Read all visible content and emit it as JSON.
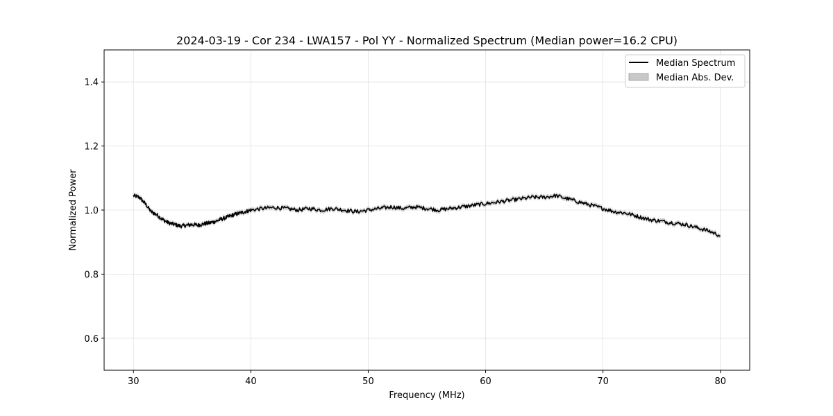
{
  "chart_data": {
    "type": "line",
    "title": "2024-03-19 - Cor 234 - LWA157 - Pol YY - Normalized Spectrum (Median power=16.2 CPU)",
    "xlabel": "Frequency (MHz)",
    "ylabel": "Normalized Power",
    "xlim": [
      27.5,
      82.5
    ],
    "ylim": [
      0.5,
      1.5
    ],
    "xticks": [
      30,
      40,
      50,
      60,
      70,
      80
    ],
    "yticks": [
      0.6,
      0.8,
      1.0,
      1.2,
      1.4
    ],
    "xtick_labels": [
      "30",
      "40",
      "50",
      "60",
      "70",
      "80"
    ],
    "ytick_labels": [
      "0.6",
      "0.8",
      "1.0",
      "1.2",
      "1.4"
    ],
    "grid": true,
    "legend_position": "top-right",
    "series": [
      {
        "name": "Median Spectrum",
        "color": "#000000",
        "x": [
          30,
          30.5,
          31,
          31.5,
          32,
          32.5,
          33,
          33.5,
          34,
          34.5,
          35,
          35.5,
          36,
          36.5,
          37,
          37.5,
          38,
          38.5,
          39,
          39.5,
          40,
          41,
          42,
          43,
          44,
          45,
          46,
          47,
          48,
          49,
          50,
          51,
          52,
          53,
          54,
          55,
          56,
          57,
          58,
          59,
          60,
          61,
          62,
          63,
          64,
          65,
          66,
          67,
          68,
          69,
          70,
          71,
          72,
          73,
          74,
          75,
          76,
          77,
          78,
          79,
          80
        ],
        "values": [
          1.045,
          1.04,
          1.02,
          0.995,
          0.985,
          0.97,
          0.96,
          0.955,
          0.95,
          0.952,
          0.955,
          0.953,
          0.957,
          0.96,
          0.965,
          0.972,
          0.978,
          0.985,
          0.99,
          0.995,
          1.0,
          1.005,
          1.008,
          1.005,
          1.0,
          1.005,
          1.0,
          1.005,
          1.0,
          0.995,
          1.0,
          1.005,
          1.01,
          1.005,
          1.01,
          1.005,
          1.0,
          1.005,
          1.01,
          1.015,
          1.02,
          1.025,
          1.03,
          1.035,
          1.04,
          1.04,
          1.045,
          1.035,
          1.025,
          1.015,
          1.005,
          0.995,
          0.99,
          0.98,
          0.97,
          0.965,
          0.96,
          0.955,
          0.945,
          0.935,
          0.92
        ]
      },
      {
        "name": "Median Abs. Dev.",
        "color": "#c8c8c8",
        "spread": 0.007
      }
    ]
  }
}
